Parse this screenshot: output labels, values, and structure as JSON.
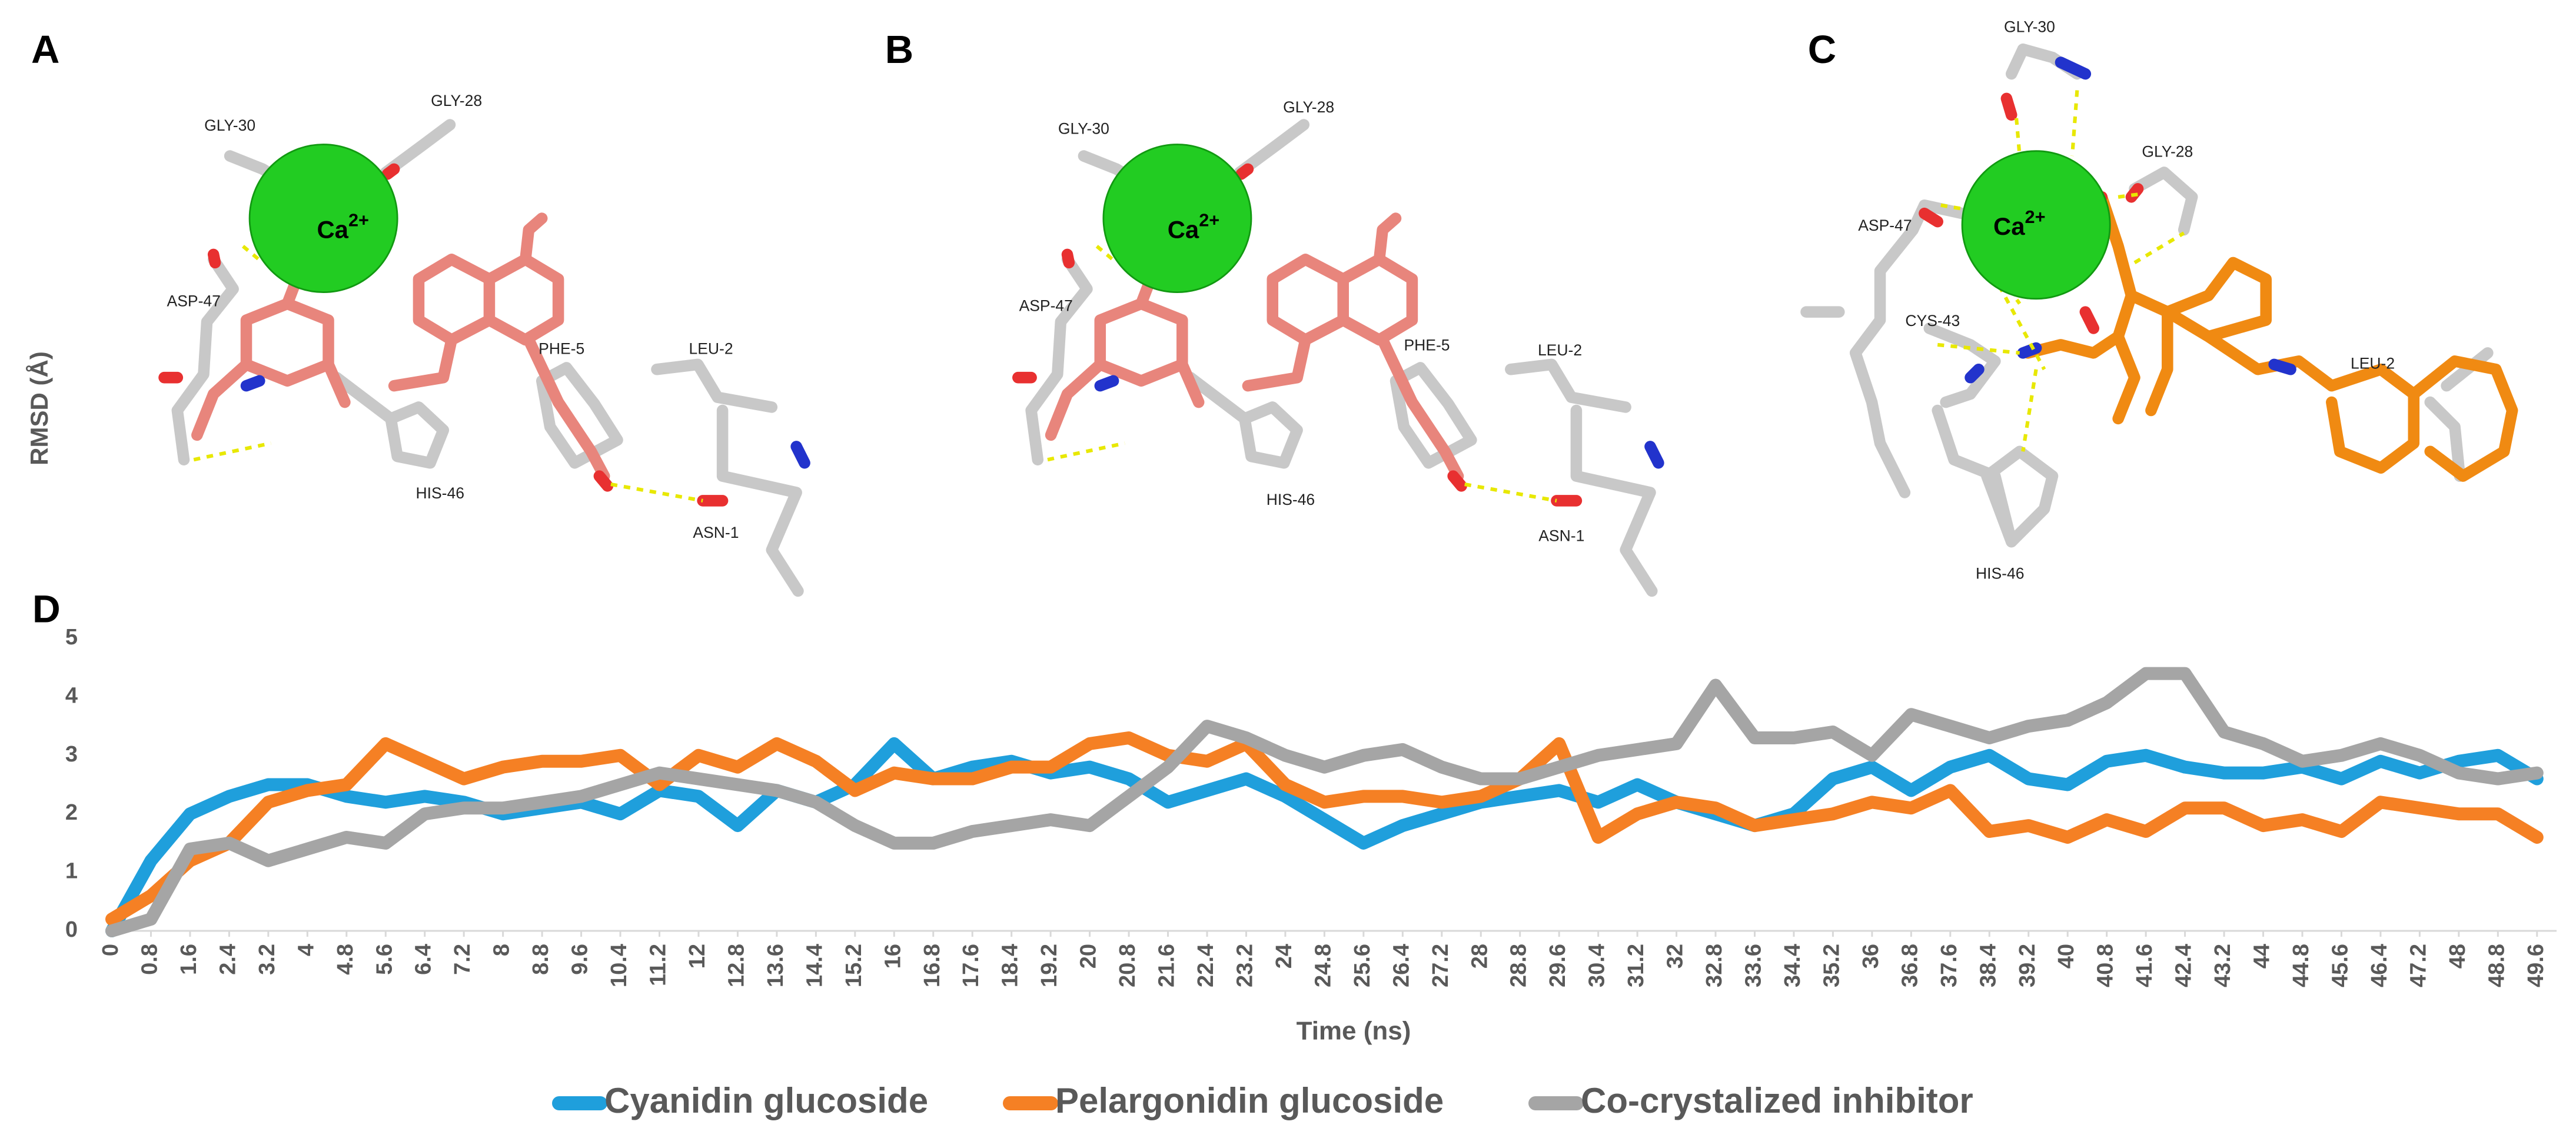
{
  "panels": [
    {
      "letter": "A",
      "ion": "Ca",
      "charge": "2+",
      "residues": [
        "GLY-30",
        "GLY-28",
        "ASP-47",
        "PHE-5",
        "LEU-2",
        "HIS-46",
        "ASN-1"
      ]
    },
    {
      "letter": "B",
      "ion": "Ca",
      "charge": "2+",
      "residues": [
        "GLY-30",
        "GLY-28",
        "ASP-47",
        "PHE-5",
        "LEU-2",
        "HIS-46",
        "ASN-1"
      ]
    },
    {
      "letter": "C",
      "ion": "Ca",
      "charge": "2+",
      "residues": [
        "GLY-30",
        "GLY-28",
        "ASP-47",
        "CYS-43",
        "LEU-2",
        "HIS-46"
      ]
    }
  ],
  "chart_data": {
    "type": "line",
    "letter": "D",
    "x_label": "Time (ns)",
    "y_label": "RMSD (Å)",
    "x": [
      0,
      0.8,
      1.6,
      2.4,
      3.2,
      4,
      4.8,
      5.6,
      6.4,
      7.2,
      8,
      8.8,
      9.6,
      10.4,
      11.2,
      12,
      12.8,
      13.6,
      14.4,
      15.2,
      16,
      16.8,
      17.6,
      18.4,
      19.2,
      20,
      20.8,
      21.6,
      22.4,
      23.2,
      24,
      24.8,
      25.6,
      26.4,
      27.2,
      28,
      28.8,
      29.6,
      30.4,
      31.2,
      32,
      32.8,
      33.6,
      34.4,
      35.2,
      36,
      36.8,
      37.6,
      38.4,
      39.2,
      40,
      40.8,
      41.6,
      42.4,
      43.2,
      44,
      44.8,
      45.6,
      46.4,
      47.2,
      48,
      48.8,
      49.6
    ],
    "xlim": [
      0,
      50
    ],
    "ylim": [
      0,
      5
    ],
    "yticks": [
      0,
      1,
      2,
      3,
      4,
      5
    ],
    "grid": false,
    "legend": "bottom",
    "series": [
      {
        "name": "Cyanidin glucoside",
        "color": "#1f9fdc",
        "values": [
          0,
          1.2,
          2.0,
          2.3,
          2.5,
          2.5,
          2.3,
          2.2,
          2.3,
          2.2,
          2.0,
          2.1,
          2.2,
          2.0,
          2.4,
          2.3,
          1.8,
          2.4,
          2.2,
          2.5,
          3.2,
          2.6,
          2.8,
          2.9,
          2.7,
          2.8,
          2.6,
          2.2,
          2.4,
          2.6,
          2.3,
          1.9,
          1.5,
          1.8,
          2.0,
          2.2,
          2.3,
          2.4,
          2.2,
          2.5,
          2.2,
          2.0,
          1.8,
          2.0,
          2.6,
          2.8,
          2.4,
          2.8,
          3.0,
          2.6,
          2.5,
          2.9,
          3.0,
          2.8,
          2.7,
          2.7,
          2.8,
          2.6,
          2.9,
          2.7,
          2.9,
          3.0,
          2.6
        ]
      },
      {
        "name": "Pelargonidin glucoside",
        "color": "#f58024",
        "values": [
          0.2,
          0.6,
          1.2,
          1.5,
          2.2,
          2.4,
          2.5,
          3.2,
          2.9,
          2.6,
          2.8,
          2.9,
          2.9,
          3.0,
          2.5,
          3.0,
          2.8,
          3.2,
          2.9,
          2.4,
          2.7,
          2.6,
          2.6,
          2.8,
          2.8,
          3.2,
          3.3,
          3.0,
          2.9,
          3.2,
          2.5,
          2.2,
          2.3,
          2.3,
          2.2,
          2.3,
          2.6,
          3.2,
          1.6,
          2.0,
          2.2,
          2.1,
          1.8,
          1.9,
          2.0,
          2.2,
          2.1,
          2.4,
          1.7,
          1.8,
          1.6,
          1.9,
          1.7,
          2.1,
          2.1,
          1.8,
          1.9,
          1.7,
          2.2,
          2.1,
          2.0,
          2.0,
          1.6
        ]
      },
      {
        "name": "Co-crystalized inhibitor",
        "color": "#a5a5a5",
        "values": [
          0,
          0.2,
          1.4,
          1.5,
          1.2,
          1.4,
          1.6,
          1.5,
          2.0,
          2.1,
          2.1,
          2.2,
          2.3,
          2.5,
          2.7,
          2.6,
          2.5,
          2.4,
          2.2,
          1.8,
          1.5,
          1.5,
          1.7,
          1.8,
          1.9,
          1.8,
          2.3,
          2.8,
          3.5,
          3.3,
          3.0,
          2.8,
          3.0,
          3.1,
          2.8,
          2.6,
          2.6,
          2.8,
          3.0,
          3.1,
          3.2,
          4.2,
          3.3,
          3.3,
          3.4,
          3.0,
          3.7,
          3.5,
          3.3,
          3.5,
          3.6,
          3.9,
          4.4,
          4.4,
          3.4,
          3.2,
          2.9,
          3.0,
          3.2,
          3.0,
          2.7,
          2.6,
          2.7
        ]
      }
    ]
  }
}
